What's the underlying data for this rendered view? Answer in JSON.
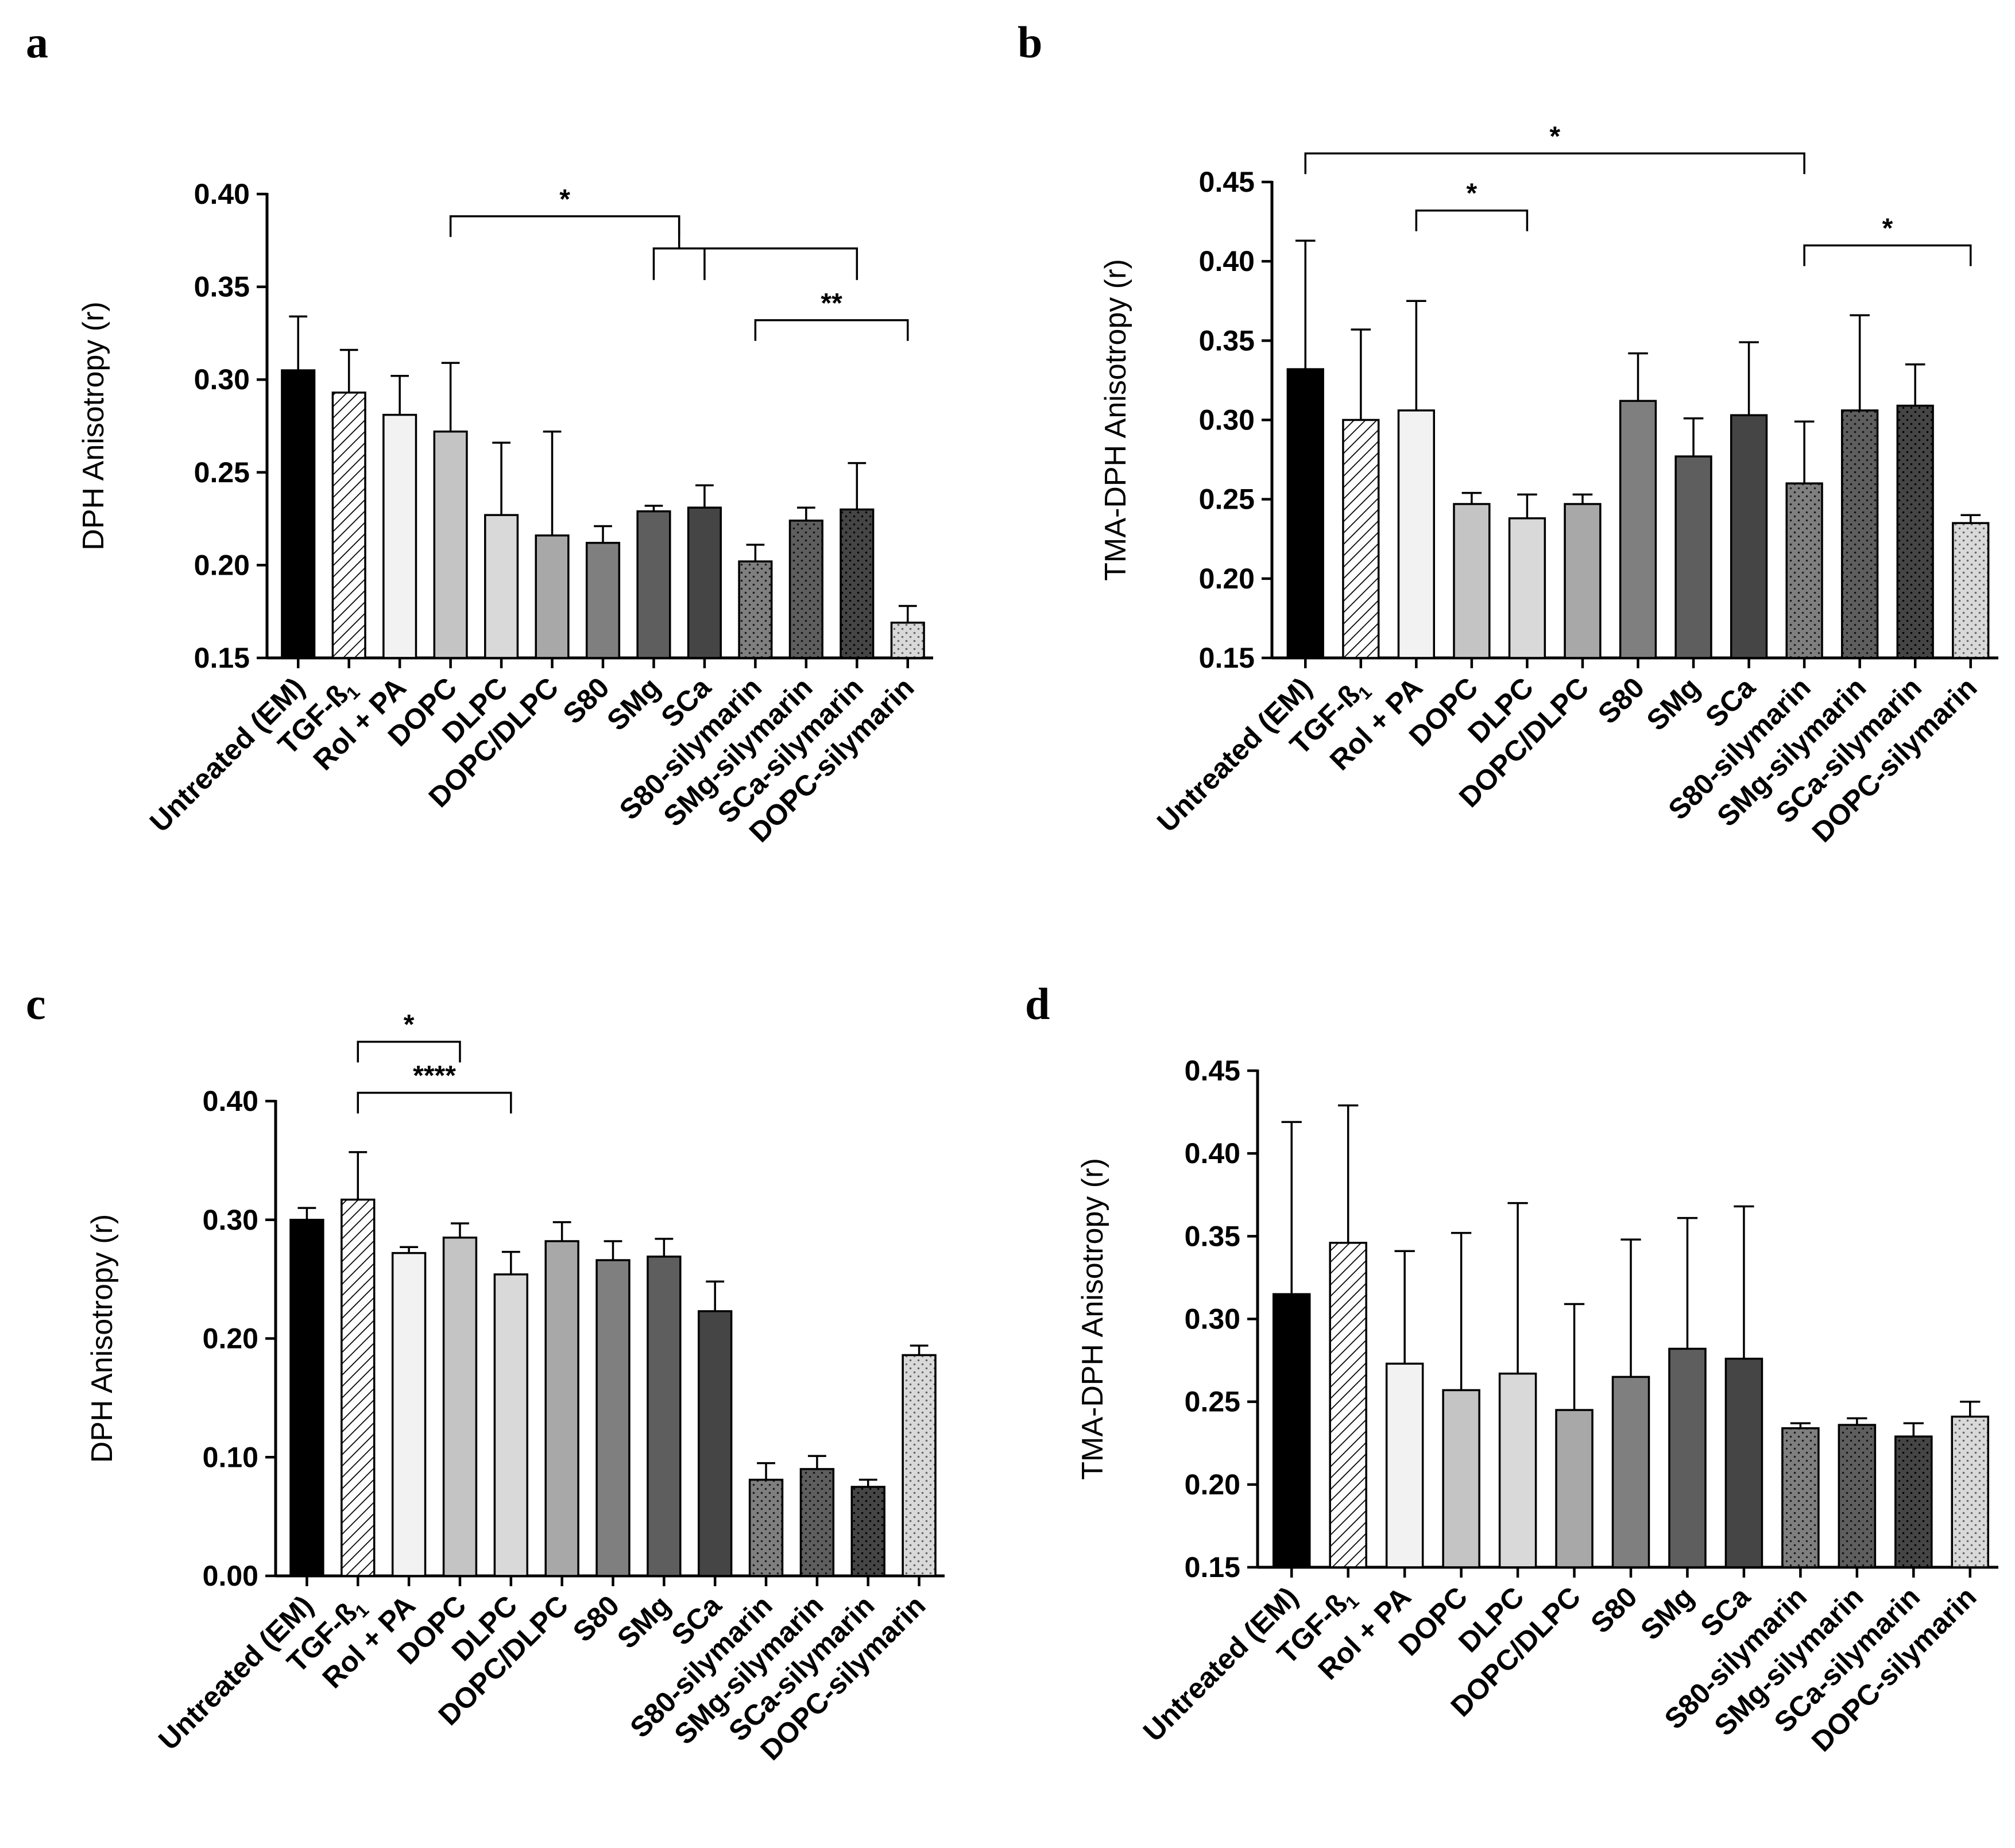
{
  "categories": [
    "Untreated (EM)",
    "TGF-ß1",
    "Rol + PA",
    "DOPC",
    "DLPC",
    "DOPC/DLPC",
    "S80",
    "SMg",
    "SCa",
    "S80-silymarin",
    "SMg-silymarin",
    "SCa-silymarin",
    "DOPC-silymarin"
  ],
  "bar_styles": [
    {
      "fill": "#000000",
      "pattern": "solid"
    },
    {
      "fill": "#ffffff",
      "pattern": "hatch"
    },
    {
      "fill": "#f2f2f2",
      "pattern": "solid"
    },
    {
      "fill": "#c4c4c4",
      "pattern": "solid"
    },
    {
      "fill": "#d9d9d9",
      "pattern": "solid"
    },
    {
      "fill": "#a8a8a8",
      "pattern": "solid"
    },
    {
      "fill": "#7f7f7f",
      "pattern": "solid"
    },
    {
      "fill": "#5e5e5e",
      "pattern": "solid"
    },
    {
      "fill": "#454545",
      "pattern": "solid"
    },
    {
      "fill": "#7f7f7f",
      "pattern": "dots"
    },
    {
      "fill": "#5e5e5e",
      "pattern": "dots"
    },
    {
      "fill": "#454545",
      "pattern": "dots"
    },
    {
      "fill": "#d9d9d9",
      "pattern": "dots"
    }
  ],
  "chart_data": [
    {
      "type": "bar",
      "panel": "a",
      "ylabel": "DPH Anisotropy (r)",
      "ylim": [
        0.15,
        0.4
      ],
      "yticks": [
        "0.15",
        "0.20",
        "0.25",
        "0.30",
        "0.35",
        "0.40"
      ],
      "values": [
        0.305,
        0.293,
        0.281,
        0.272,
        0.227,
        0.216,
        0.212,
        0.229,
        0.231,
        0.202,
        0.224,
        0.23,
        0.169
      ],
      "errors": [
        0.029,
        0.023,
        0.021,
        0.037,
        0.039,
        0.056,
        0.009,
        0.003,
        0.012,
        0.009,
        0.007,
        0.025,
        0.009
      ],
      "significance": [
        {
          "label": "*",
          "from": 3,
          "to": 7.5,
          "y": 0.388
        },
        {
          "label": "**",
          "from": 9,
          "to": 12,
          "y": 0.332
        }
      ]
    },
    {
      "type": "bar",
      "panel": "b",
      "ylabel": "TMA-DPH Anisotropy (r)",
      "ylim": [
        0.15,
        0.45
      ],
      "yticks": [
        "0.15",
        "0.20",
        "0.25",
        "0.30",
        "0.35",
        "0.40",
        "0.45"
      ],
      "values": [
        0.332,
        0.3,
        0.306,
        0.247,
        0.238,
        0.247,
        0.312,
        0.277,
        0.303,
        0.26,
        0.306,
        0.309,
        0.235
      ],
      "errors": [
        0.081,
        0.057,
        0.069,
        0.007,
        0.015,
        0.006,
        0.03,
        0.024,
        0.046,
        0.039,
        0.06,
        0.026,
        0.005
      ],
      "significance": [
        {
          "label": "*",
          "from": 0,
          "to": 9,
          "y": 0.468
        },
        {
          "label": "*",
          "from": 2,
          "to": 4,
          "y": 0.432
        },
        {
          "label": "*",
          "from": 9,
          "to": 12,
          "y": 0.41
        }
      ]
    },
    {
      "type": "bar",
      "panel": "c",
      "ylabel": "DPH Anisotropy (r)",
      "ylim": [
        0.0,
        0.4
      ],
      "yticks": [
        "0.00",
        "0.10",
        "0.20",
        "0.30",
        "0.40"
      ],
      "values": [
        0.3,
        0.317,
        0.272,
        0.285,
        0.254,
        0.282,
        0.266,
        0.269,
        0.223,
        0.081,
        0.09,
        0.075,
        0.186
      ],
      "errors": [
        0.01,
        0.04,
        0.005,
        0.012,
        0.019,
        0.016,
        0.016,
        0.015,
        0.025,
        0.014,
        0.011,
        0.006,
        0.008
      ],
      "significance": [
        {
          "label": "*",
          "from": 1,
          "to": 3,
          "y": 0.45
        },
        {
          "label": "****",
          "from": 1,
          "to": 4,
          "y": 0.407
        }
      ]
    },
    {
      "type": "bar",
      "panel": "d",
      "ylabel": "TMA-DPH Anisotropy (r)",
      "ylim": [
        0.15,
        0.45
      ],
      "yticks": [
        "0.15",
        "0.20",
        "0.25",
        "0.30",
        "0.35",
        "0.40",
        "0.45"
      ],
      "values": [
        0.315,
        0.346,
        0.273,
        0.257,
        0.267,
        0.245,
        0.265,
        0.282,
        0.276,
        0.234,
        0.236,
        0.229,
        0.241
      ],
      "errors": [
        0.104,
        0.083,
        0.068,
        0.095,
        0.103,
        0.064,
        0.083,
        0.079,
        0.092,
        0.003,
        0.004,
        0.008,
        0.009
      ],
      "significance": []
    }
  ]
}
